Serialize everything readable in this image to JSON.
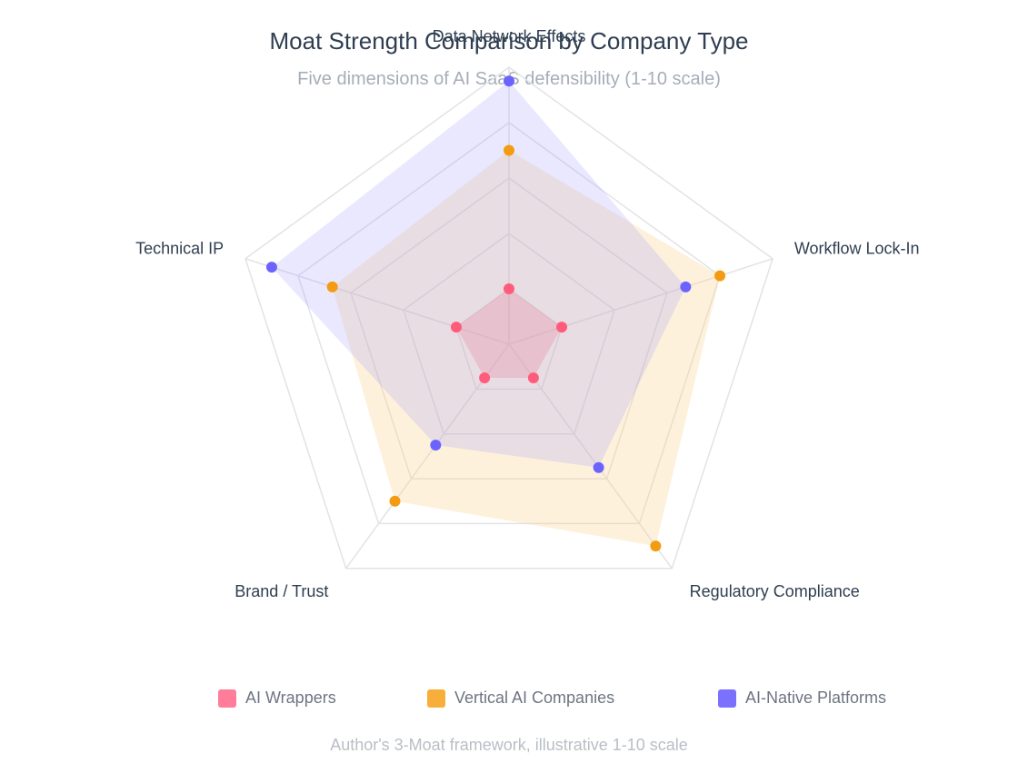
{
  "chart_data": {
    "type": "radar",
    "title": "Moat Strength Comparison by Company Type",
    "subtitle": "Five dimensions of AI SaaS defensibility (1-10 scale)",
    "footnote": "Author's 3-Moat framework, illustrative 1-10 scale",
    "axes": [
      "Data Network Effects",
      "Workflow Lock-In",
      "Regulatory Compliance",
      "Brand / Trust",
      "Technical IP"
    ],
    "scale": [
      0,
      10
    ],
    "grid": true,
    "legend_position": "bottom",
    "series": [
      {
        "name": "AI Wrappers",
        "values": [
          2,
          2,
          1.5,
          1.5,
          2
        ],
        "color": "#ff5c7c",
        "fill": "#ff6f8f",
        "legend_color": "#ff7d99",
        "fill_opacity": 0.35
      },
      {
        "name": "Vertical AI Companies",
        "values": [
          7,
          8,
          9,
          7,
          6.7
        ],
        "color": "#f39c12",
        "fill": "#fbcb80",
        "legend_color": "#f8ae3a",
        "fill_opacity": 0.28
      },
      {
        "name": "AI-Native Platforms",
        "values": [
          9.5,
          6.7,
          5.5,
          4.5,
          9
        ],
        "color": "#6c63ff",
        "fill": "#9c95ff",
        "legend_color": "#7a72ff",
        "fill_opacity": 0.22
      }
    ]
  }
}
